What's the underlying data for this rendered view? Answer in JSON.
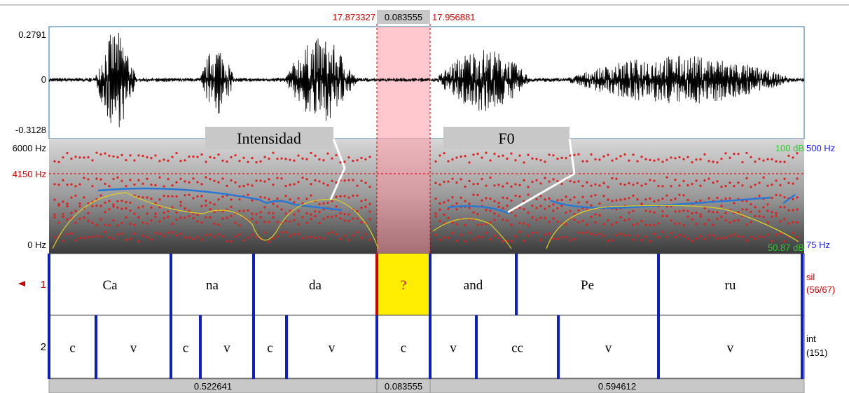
{
  "selection": {
    "start": "17.873327",
    "duration": "0.083555",
    "end": "17.956881"
  },
  "waveform": {
    "max": "0.2791",
    "zero": "0",
    "min": "-0.3128"
  },
  "spectrogram": {
    "top": "6000 Hz",
    "cursor": "4150 Hz",
    "bottom": "0 Hz",
    "intensity_top": "100 dB",
    "pitch_top": "500 Hz",
    "intensity_bottom": "50.87 dB",
    "pitch_bottom": "75 Hz"
  },
  "annotations": [
    "Intensidad",
    "F0"
  ],
  "tiers": [
    {
      "number": "1",
      "labels": [
        "Ca",
        "na",
        "da",
        "?",
        "and",
        "Pe",
        "ru"
      ],
      "name": "sil",
      "count": "(56/67)"
    },
    {
      "number": "2",
      "labels": [
        "c",
        "v",
        "c",
        "v",
        "c",
        "v",
        "c",
        "v",
        "cc",
        "v",
        "v"
      ],
      "name": "int",
      "count": "(151)"
    }
  ],
  "durations": [
    "0.522641",
    "0.083555",
    "0.594612"
  ]
}
